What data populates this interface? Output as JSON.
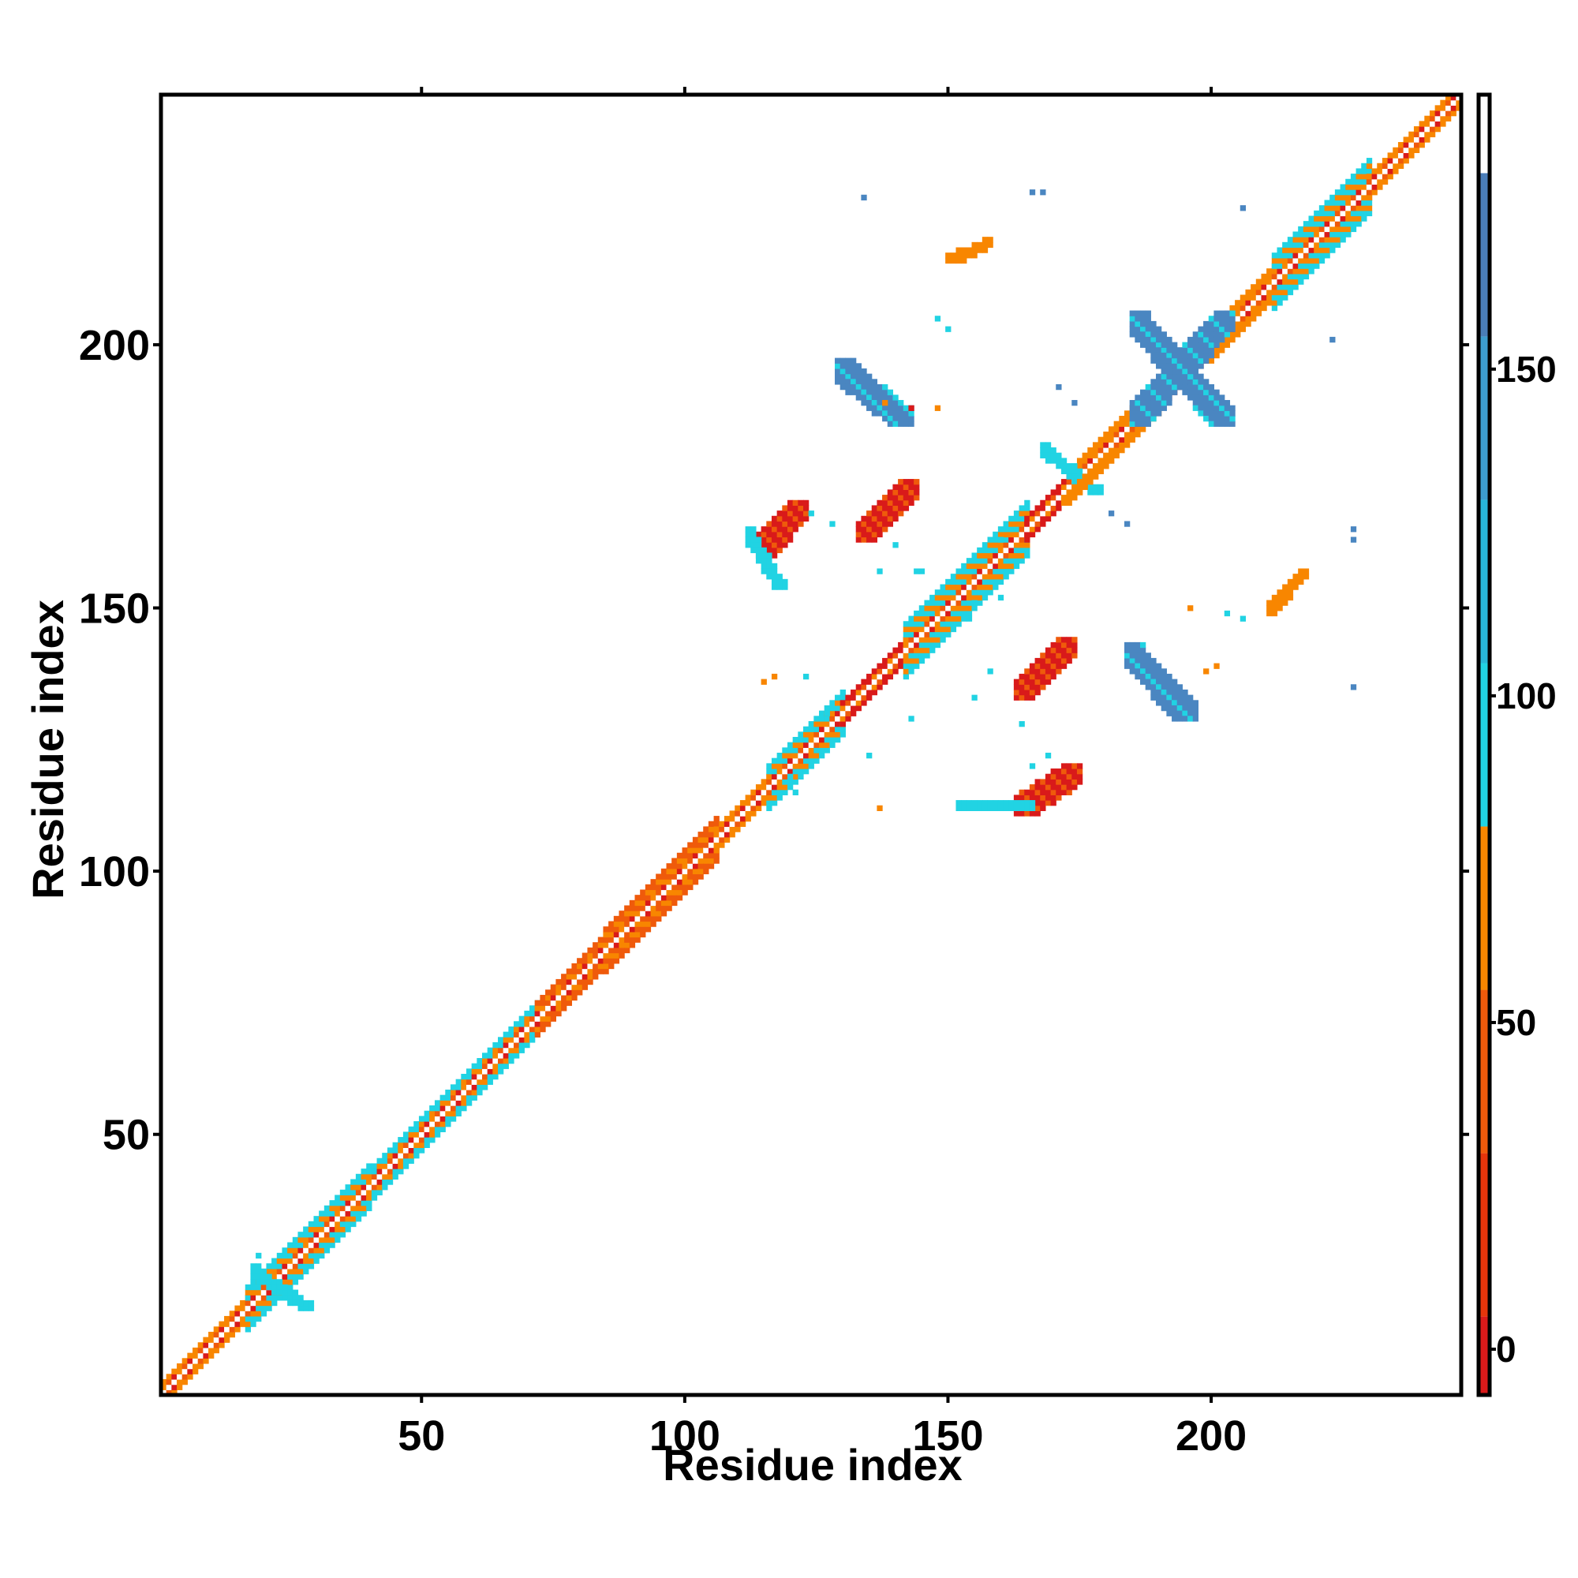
{
  "chart_data": {
    "type": "heatmap",
    "xlabel": "Residue index",
    "ylabel": "Residue index",
    "xlim": [
      1,
      247
    ],
    "ylim": [
      1,
      247
    ],
    "x_ticks": [
      50,
      100,
      150,
      200
    ],
    "y_ticks": [
      50,
      100,
      150,
      200
    ],
    "colorbar": {
      "ticks": [
        0,
        50,
        100,
        150
      ],
      "range": [
        -7,
        192
      ],
      "bands": [
        {
          "from": -7,
          "to": 5,
          "color": "#d91a1a"
        },
        {
          "from": 5,
          "to": 30,
          "color": "#e5350b"
        },
        {
          "from": 30,
          "to": 55,
          "color": "#ef5a0b"
        },
        {
          "from": 55,
          "to": 80,
          "color": "#f88600"
        },
        {
          "from": 80,
          "to": 105,
          "color": "#21d3e3"
        },
        {
          "from": 105,
          "to": 130,
          "color": "#28b6d8"
        },
        {
          "from": 130,
          "to": 155,
          "color": "#3d9cce"
        },
        {
          "from": 155,
          "to": 180,
          "color": "#4a7db8"
        },
        {
          "from": 180,
          "to": 192,
          "color": "#ffffff"
        }
      ]
    },
    "colors": {
      "red": "#d91a1a",
      "orange_red": "#ef5a0b",
      "orange": "#f88600",
      "cyan": "#21d3e3",
      "steel_blue": "#4a86c1"
    },
    "diagonal_band": {
      "segments": [
        {
          "from": 1,
          "to": 17,
          "width": 2,
          "color": "orange"
        },
        {
          "from": 17,
          "to": 40,
          "width": 4,
          "color": "cyan"
        },
        {
          "from": 40,
          "to": 52,
          "width": 3,
          "color": "cyan"
        },
        {
          "from": 52,
          "to": 72,
          "width": 3,
          "color": "cyan"
        },
        {
          "from": 72,
          "to": 85,
          "width": 3,
          "color": "orange_red"
        },
        {
          "from": 85,
          "to": 106,
          "width": 4,
          "color": "orange_red"
        },
        {
          "from": 106,
          "to": 116,
          "width": 2,
          "color": "orange"
        },
        {
          "from": 116,
          "to": 130,
          "width": 4,
          "color": "cyan"
        },
        {
          "from": 130,
          "to": 142,
          "width": 2,
          "color": "red"
        },
        {
          "from": 142,
          "to": 165,
          "width": 5,
          "color": "cyan"
        },
        {
          "from": 165,
          "to": 175,
          "width": 2,
          "color": "red"
        },
        {
          "from": 175,
          "to": 190,
          "width": 3,
          "color": "orange"
        },
        {
          "from": 190,
          "to": 200,
          "width": 2,
          "color": "red"
        },
        {
          "from": 200,
          "to": 212,
          "width": 3,
          "color": "orange"
        },
        {
          "from": 212,
          "to": 230,
          "width": 5,
          "color": "cyan"
        },
        {
          "from": 230,
          "to": 247,
          "width": 2,
          "color": "orange"
        }
      ]
    },
    "contact_blobs": [
      {
        "x": [
          186,
          202
        ],
        "y": [
          204,
          186
        ],
        "color": "steel_blue",
        "width": 2.5
      },
      {
        "x": [
          186,
          202
        ],
        "y": [
          186,
          204
        ],
        "color": "steel_blue",
        "width": 2.5
      },
      {
        "x": [
          130,
          141
        ],
        "y": [
          195,
          186
        ],
        "color": "steel_blue",
        "width": 2.5
      },
      {
        "x": [
          185,
          195
        ],
        "y": [
          141,
          130
        ],
        "color": "steel_blue",
        "width": 2.5
      },
      {
        "x": [
          115,
          121
        ],
        "y": [
          161,
          168
        ],
        "color": "red",
        "width": 2.5
      },
      {
        "x": [
          134,
          142
        ],
        "y": [
          164,
          172
        ],
        "color": "red",
        "width": 2.5
      },
      {
        "x": [
          164,
          172
        ],
        "y": [
          134,
          142
        ],
        "color": "red",
        "width": 2.5
      },
      {
        "x": [
          164,
          173
        ],
        "y": [
          112,
          118
        ],
        "color": "red",
        "width": 2.5
      },
      {
        "x": [
          112,
          118
        ],
        "y": [
          164,
          154
        ],
        "color": "cyan",
        "width": 1.5
      },
      {
        "x": [
          152,
          165
        ],
        "y": [
          112,
          112
        ],
        "color": "cyan",
        "width": 1.5
      },
      {
        "x": [
          150,
          157
        ],
        "y": [
          216,
          219
        ],
        "color": "orange",
        "width": 1.5
      },
      {
        "x": [
          211,
          217
        ],
        "y": [
          149,
          156
        ],
        "color": "orange",
        "width": 1.5
      },
      {
        "x": [
          168,
          178
        ],
        "y": [
          180,
          172
        ],
        "color": "cyan",
        "width": 1.5
      },
      {
        "x": [
          172,
          180
        ],
        "y": [
          170,
          178
        ],
        "color": "orange",
        "width": 1.5
      },
      {
        "x": [
          18,
          28
        ],
        "y": [
          24,
          17
        ],
        "color": "cyan",
        "width": 1.5
      }
    ],
    "scatter_pixels": [
      {
        "x": 134,
        "y": 228,
        "color": "steel_blue"
      },
      {
        "x": 166,
        "y": 229,
        "color": "steel_blue"
      },
      {
        "x": 168,
        "y": 229,
        "color": "steel_blue"
      },
      {
        "x": 206,
        "y": 226,
        "color": "steel_blue"
      },
      {
        "x": 223,
        "y": 201,
        "color": "steel_blue"
      },
      {
        "x": 227,
        "y": 165,
        "color": "steel_blue"
      },
      {
        "x": 227,
        "y": 163,
        "color": "steel_blue"
      },
      {
        "x": 227,
        "y": 135,
        "color": "steel_blue"
      },
      {
        "x": 148,
        "y": 205,
        "color": "cyan"
      },
      {
        "x": 150,
        "y": 203,
        "color": "cyan"
      },
      {
        "x": 171,
        "y": 192,
        "color": "steel_blue"
      },
      {
        "x": 174,
        "y": 189,
        "color": "steel_blue"
      },
      {
        "x": 181,
        "y": 168,
        "color": "steel_blue"
      },
      {
        "x": 184,
        "y": 166,
        "color": "steel_blue"
      },
      {
        "x": 203,
        "y": 149,
        "color": "cyan"
      },
      {
        "x": 206,
        "y": 148,
        "color": "cyan"
      },
      {
        "x": 115,
        "y": 136,
        "color": "orange"
      },
      {
        "x": 117,
        "y": 137,
        "color": "orange"
      },
      {
        "x": 138,
        "y": 189,
        "color": "orange"
      },
      {
        "x": 148,
        "y": 188,
        "color": "orange"
      },
      {
        "x": 143,
        "y": 188,
        "color": "red"
      },
      {
        "x": 137,
        "y": 112,
        "color": "orange"
      },
      {
        "x": 155,
        "y": 133,
        "color": "cyan"
      },
      {
        "x": 158,
        "y": 138,
        "color": "cyan"
      },
      {
        "x": 127,
        "y": 130,
        "color": "cyan"
      },
      {
        "x": 123,
        "y": 137,
        "color": "cyan"
      },
      {
        "x": 128,
        "y": 166,
        "color": "cyan"
      },
      {
        "x": 124,
        "y": 168,
        "color": "cyan"
      },
      {
        "x": 137,
        "y": 157,
        "color": "cyan"
      },
      {
        "x": 145,
        "y": 157,
        "color": "cyan"
      },
      {
        "x": 160,
        "y": 152,
        "color": "cyan"
      },
      {
        "x": 143,
        "y": 129,
        "color": "cyan"
      },
      {
        "x": 135,
        "y": 122,
        "color": "cyan"
      },
      {
        "x": 166,
        "y": 120,
        "color": "cyan"
      },
      {
        "x": 169,
        "y": 122,
        "color": "cyan"
      },
      {
        "x": 164,
        "y": 128,
        "color": "cyan"
      },
      {
        "x": 160,
        "y": 163,
        "color": "cyan"
      },
      {
        "x": 196,
        "y": 150,
        "color": "orange"
      },
      {
        "x": 199,
        "y": 138,
        "color": "orange"
      },
      {
        "x": 201,
        "y": 139,
        "color": "orange"
      },
      {
        "x": 144,
        "y": 157,
        "color": "cyan"
      },
      {
        "x": 140,
        "y": 162,
        "color": "cyan"
      },
      {
        "x": 155,
        "y": 151,
        "color": "cyan"
      },
      {
        "x": 154,
        "y": 148,
        "color": "cyan"
      },
      {
        "x": 120,
        "y": 118,
        "color": "cyan"
      },
      {
        "x": 121,
        "y": 115,
        "color": "cyan"
      },
      {
        "x": 27,
        "y": 18,
        "color": "cyan"
      },
      {
        "x": 19,
        "y": 27,
        "color": "cyan"
      }
    ]
  }
}
